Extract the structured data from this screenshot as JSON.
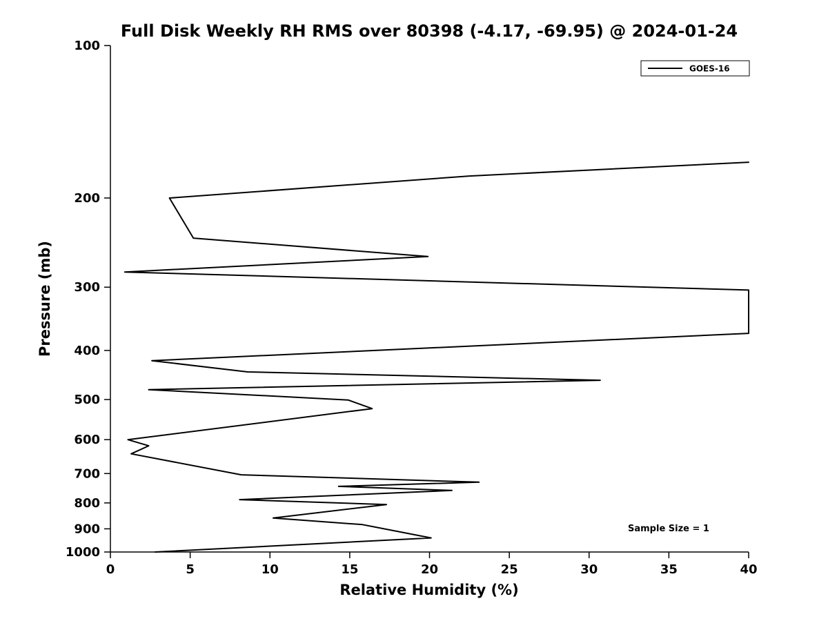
{
  "legend": {
    "entries": [
      {
        "label": "GOES-16",
        "color": "#000000"
      }
    ]
  },
  "annotation": "Sample Size = 1",
  "chart_data": {
    "type": "line",
    "title": "Full Disk Weekly RH RMS over 80398 (-4.17, -69.95) @ 2024-01-24",
    "xlabel": "Relative Humidity (%)",
    "ylabel": "Pressure (mb)",
    "xlim": [
      0,
      40
    ],
    "ylim": [
      100,
      1000
    ],
    "yscale": "log",
    "y_direction": "increasing-downward",
    "grid": false,
    "legend_position": "top-right",
    "xticks": [
      0,
      5,
      10,
      15,
      20,
      25,
      30,
      35,
      40
    ],
    "yticks": [
      100,
      200,
      300,
      400,
      500,
      600,
      700,
      800,
      900,
      1000
    ],
    "series": [
      {
        "name": "GOES-16",
        "color": "#000000",
        "points_format": "[relative_humidity_percent, pressure_mb]",
        "points": [
          [
            40.0,
            170
          ],
          [
            22.5,
            181
          ],
          [
            3.7,
            200
          ],
          [
            5.2,
            240
          ],
          [
            19.9,
            261
          ],
          [
            0.9,
            280
          ],
          [
            40.0,
            304
          ],
          [
            40.0,
            370
          ],
          [
            2.6,
            419
          ],
          [
            8.6,
            441
          ],
          [
            30.7,
            458
          ],
          [
            2.4,
            478
          ],
          [
            14.9,
            501
          ],
          [
            16.4,
            521
          ],
          [
            1.1,
            600
          ],
          [
            2.4,
            617
          ],
          [
            1.3,
            640
          ],
          [
            8.2,
            704
          ],
          [
            23.1,
            728
          ],
          [
            14.3,
            742
          ],
          [
            21.4,
            756
          ],
          [
            8.1,
            788
          ],
          [
            17.3,
            806
          ],
          [
            10.2,
            857
          ],
          [
            15.8,
            883
          ],
          [
            20.1,
            938
          ],
          [
            2.8,
            1000
          ]
        ]
      }
    ],
    "annotations": [
      "Sample Size = 1"
    ]
  }
}
